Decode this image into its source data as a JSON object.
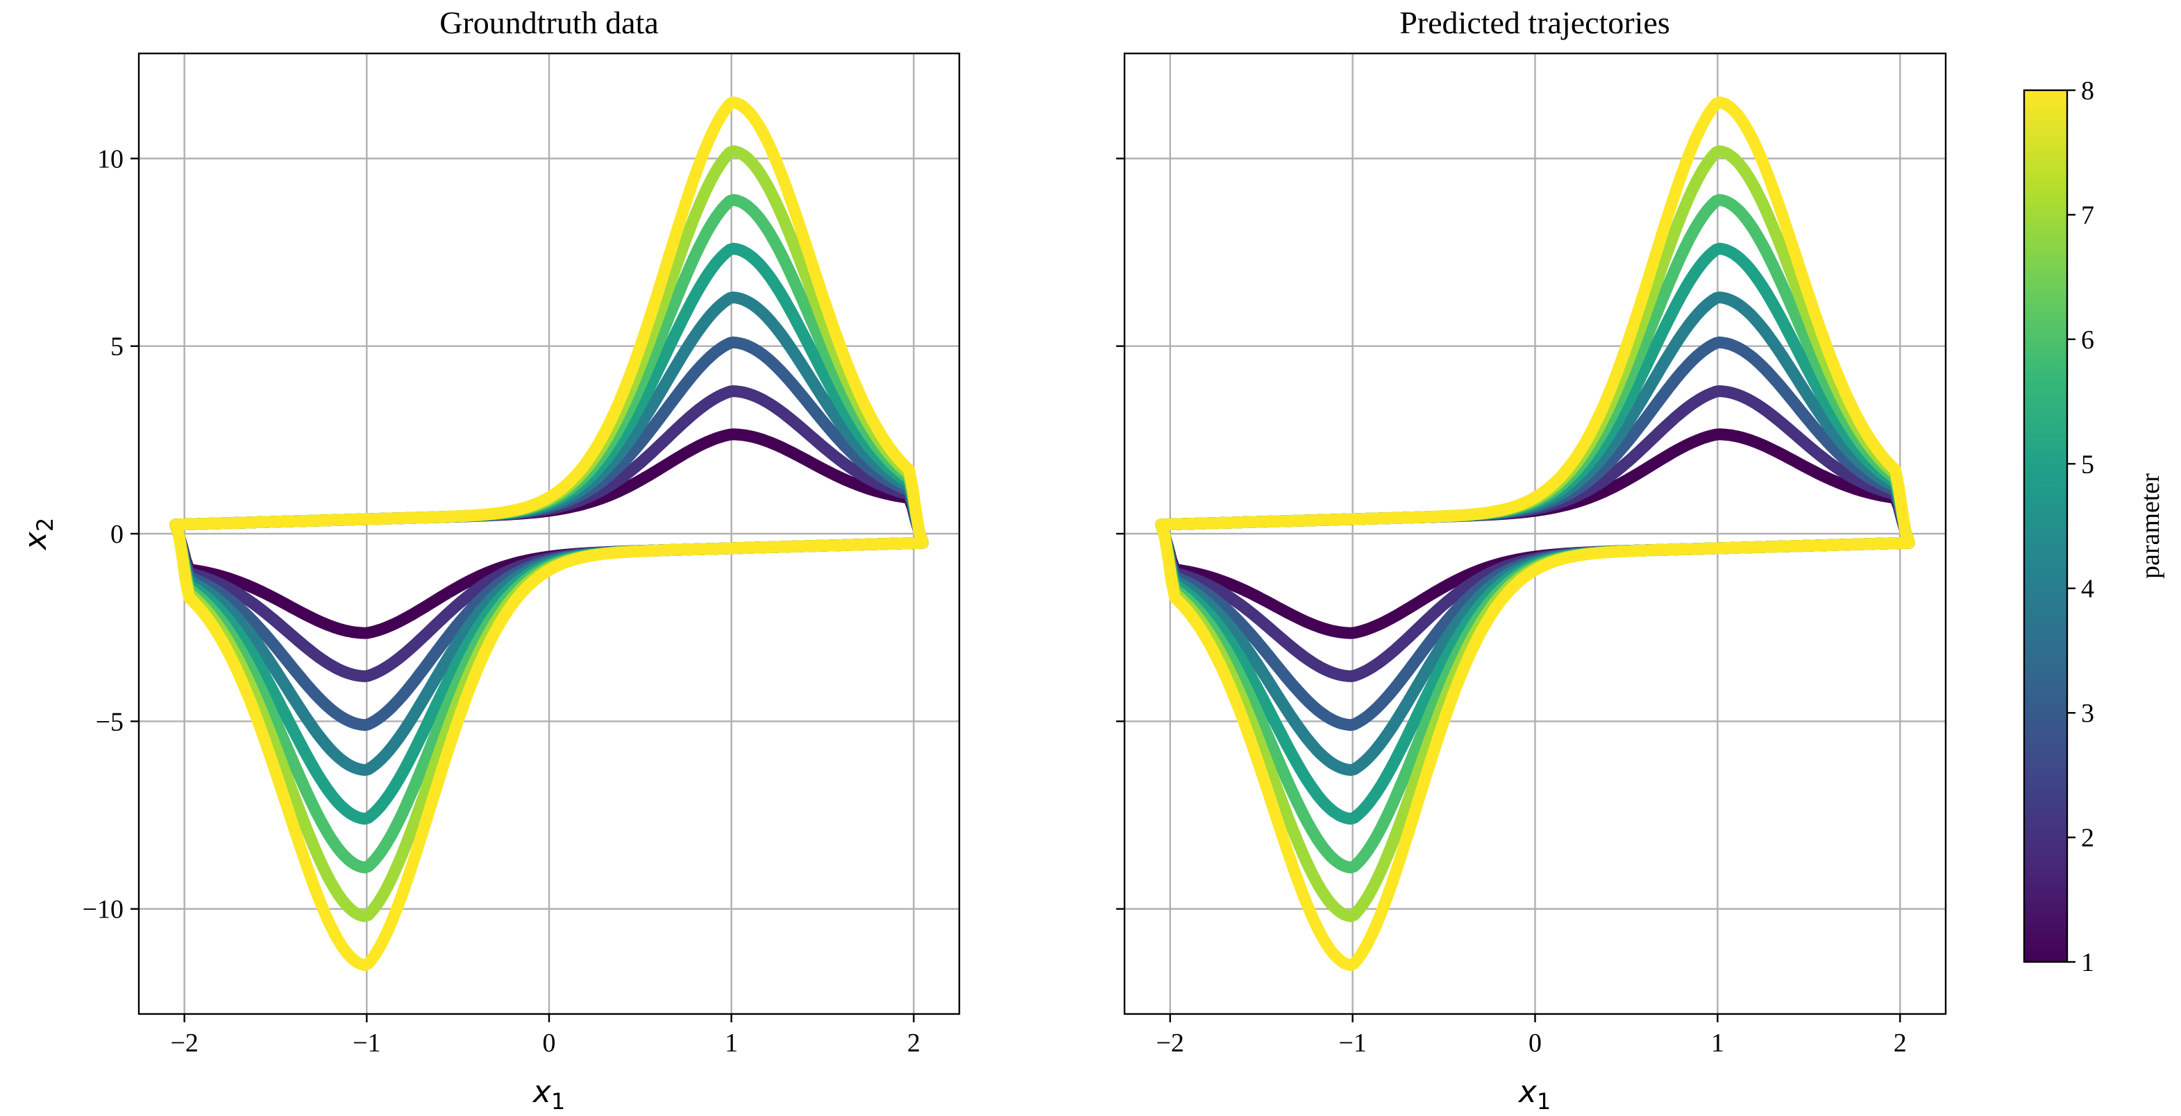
{
  "chart_data": [
    {
      "type": "line",
      "title": "Groundtruth data",
      "xlabel": "x",
      "xlabel_sub": "1",
      "ylabel": "x",
      "ylabel_sub": "2",
      "xlim": [
        -2.25,
        2.25
      ],
      "ylim": [
        -12.8,
        12.8
      ],
      "xticks": [
        -2,
        -1,
        0,
        1,
        2
      ],
      "yticks": [
        -10,
        -5,
        0,
        5,
        10
      ],
      "xtick_labels": [
        "−2",
        "−1",
        "0",
        "1",
        "2"
      ],
      "ytick_labels": [
        "−10",
        "−5",
        "0",
        "5",
        "10"
      ],
      "grid": true,
      "series": [
        {
          "parameter": 1,
          "peak_x2": 2.65,
          "color": "#440154"
        },
        {
          "parameter": 2,
          "peak_x2": 3.8,
          "color": "#46327e"
        },
        {
          "parameter": 3,
          "peak_x2": 5.1,
          "color": "#365c8d"
        },
        {
          "parameter": 4,
          "peak_x2": 6.3,
          "color": "#277f8e"
        },
        {
          "parameter": 5,
          "peak_x2": 7.6,
          "color": "#1fa187"
        },
        {
          "parameter": 6,
          "peak_x2": 8.9,
          "color": "#4ac16d"
        },
        {
          "parameter": 7,
          "peak_x2": 10.2,
          "color": "#a0da39"
        },
        {
          "parameter": 8,
          "peak_x2": 11.5,
          "color": "#fde725"
        }
      ]
    },
    {
      "type": "line",
      "title": "Predicted trajectories",
      "xlabel": "x",
      "xlabel_sub": "1",
      "xlim": [
        -2.25,
        2.25
      ],
      "ylim": [
        -12.8,
        12.8
      ],
      "xticks": [
        -2,
        -1,
        0,
        1,
        2
      ],
      "yticks": [
        -10,
        -5,
        0,
        5,
        10
      ],
      "xtick_labels": [
        "−2",
        "−1",
        "0",
        "1",
        "2"
      ],
      "grid": true,
      "series": [
        {
          "parameter": 1,
          "peak_x2": 2.65,
          "color": "#440154"
        },
        {
          "parameter": 2,
          "peak_x2": 3.8,
          "color": "#46327e"
        },
        {
          "parameter": 3,
          "peak_x2": 5.1,
          "color": "#365c8d"
        },
        {
          "parameter": 4,
          "peak_x2": 6.3,
          "color": "#277f8e"
        },
        {
          "parameter": 5,
          "peak_x2": 7.6,
          "color": "#1fa187"
        },
        {
          "parameter": 6,
          "peak_x2": 8.9,
          "color": "#4ac16d"
        },
        {
          "parameter": 7,
          "peak_x2": 10.2,
          "color": "#a0da39"
        },
        {
          "parameter": 8,
          "peak_x2": 11.5,
          "color": "#fde725"
        }
      ]
    }
  ],
  "colorbar": {
    "label": "parameter",
    "range": [
      1,
      8
    ],
    "ticks": [
      1,
      2,
      3,
      4,
      5,
      6,
      7,
      8
    ],
    "tick_labels": [
      "1",
      "2",
      "3",
      "4",
      "5",
      "6",
      "7",
      "8"
    ],
    "colormap": "viridis",
    "stops": [
      "#440154",
      "#482878",
      "#3e4989",
      "#31688e",
      "#26828e",
      "#1f9e89",
      "#35b779",
      "#6ece58",
      "#b5de2b",
      "#fde725"
    ]
  }
}
